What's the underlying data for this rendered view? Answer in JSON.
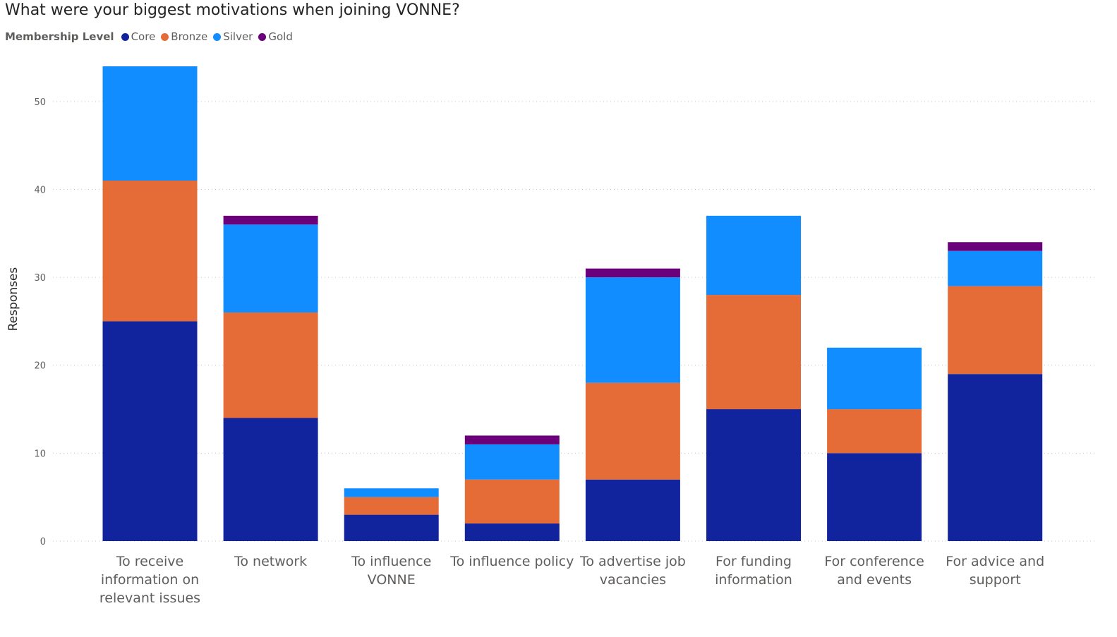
{
  "chart_data": {
    "type": "bar",
    "stacked": true,
    "title": "What were your biggest motivations when joining VONNE?",
    "legend_title": "Membership Level",
    "legend_placement": "top-left",
    "xlabel": "",
    "ylabel": "Responses",
    "ylim": [
      0,
      54
    ],
    "yticks": [
      0,
      10,
      20,
      30,
      40,
      50
    ],
    "grid": true,
    "categories": [
      [
        "To receive",
        "information on",
        "relevant issues"
      ],
      [
        "To network"
      ],
      [
        "To influence",
        "VONNE"
      ],
      [
        "To influence policy"
      ],
      [
        "To advertise job",
        "vacancies"
      ],
      [
        "For funding",
        "information"
      ],
      [
        "For conference",
        "and events"
      ],
      [
        "For advice and",
        "support"
      ]
    ],
    "series": [
      {
        "name": "Core",
        "color": "#12239e",
        "values": [
          25,
          14,
          3,
          2,
          7,
          15,
          10,
          19
        ]
      },
      {
        "name": "Bronze",
        "color": "#e66c37",
        "values": [
          16,
          12,
          2,
          5,
          11,
          13,
          5,
          10
        ]
      },
      {
        "name": "Silver",
        "color": "#118dff",
        "values": [
          13,
          10,
          1,
          4,
          12,
          9,
          7,
          4
        ]
      },
      {
        "name": "Gold",
        "color": "#6b007b",
        "values": [
          0,
          1,
          0,
          1,
          1,
          0,
          0,
          1
        ]
      }
    ]
  }
}
